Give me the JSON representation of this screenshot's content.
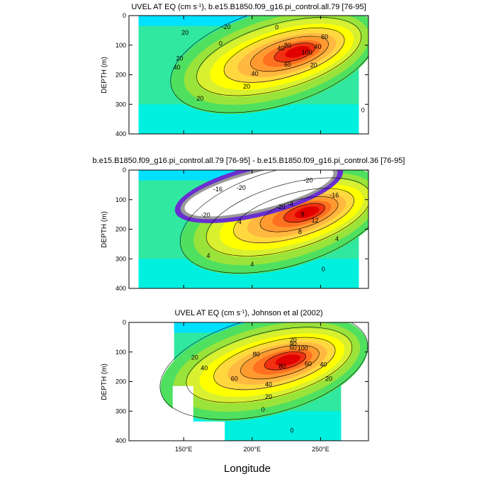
{
  "figure": {
    "xlabel": "Longitude",
    "x_ticks": [
      "150°E",
      "200°E",
      "250°E"
    ],
    "x_tick_values": [
      150,
      200,
      250
    ],
    "x_range": [
      110,
      285
    ],
    "y_range": [
      0,
      400
    ],
    "y_ticks": [
      "0",
      "100",
      "200",
      "300",
      "400"
    ],
    "y_tick_values": [
      0,
      100,
      200,
      300,
      400
    ],
    "ylabel": "DEPTH (m)"
  },
  "palette": [
    "#00e0ff",
    "#00f0e0",
    "#30e8a0",
    "#50e060",
    "#9ae33a",
    "#d8f030",
    "#ffff00",
    "#ffd840",
    "#ffb840",
    "#ff9a30",
    "#ff7020",
    "#f03010",
    "#e00000"
  ],
  "chart_data": [
    {
      "type": "contour",
      "title": "UVEL AT EQ (cm s-1), b.e15.B1850.f09_g16.pi_control.all.79 [76-95]",
      "title_main": "UVEL AT EQ (cm s",
      "title_sup": "-1",
      "title_rest": "), b.e15.B1850.f09_g16.pi_control.all.79 [76-95]",
      "xlabel": "",
      "ylabel": "DEPTH (m)",
      "x_range": [
        110,
        285
      ],
      "ylim": [
        0,
        400
      ],
      "data_extent_lon": [
        117,
        278
      ],
      "core": {
        "lon": 235,
        "depth": 120,
        "max": 120
      },
      "contour_levels": [
        -20,
        0,
        20,
        40,
        60,
        80,
        100
      ],
      "contour_labels": [
        {
          "text": "-20",
          "lon": 181,
          "depth": 38
        },
        {
          "text": "0",
          "lon": 218,
          "depth": 40
        },
        {
          "text": "0",
          "lon": 177,
          "depth": 95
        },
        {
          "text": "20",
          "lon": 151,
          "depth": 58
        },
        {
          "text": "20",
          "lon": 147,
          "depth": 145
        },
        {
          "text": "20",
          "lon": 245,
          "depth": 168
        },
        {
          "text": "20",
          "lon": 162,
          "depth": 280
        },
        {
          "text": "20",
          "lon": 196,
          "depth": 240
        },
        {
          "text": "40",
          "lon": 145,
          "depth": 175
        },
        {
          "text": "40",
          "lon": 202,
          "depth": 197
        },
        {
          "text": "40",
          "lon": 248,
          "depth": 105
        },
        {
          "text": "40",
          "lon": 221,
          "depth": 110
        },
        {
          "text": "60",
          "lon": 226,
          "depth": 165
        },
        {
          "text": "60",
          "lon": 253,
          "depth": 72
        },
        {
          "text": "80",
          "lon": 226,
          "depth": 100
        },
        {
          "text": "100",
          "lon": 240,
          "depth": 125
        },
        {
          "text": "0",
          "lon": 281,
          "depth": 320
        }
      ]
    },
    {
      "type": "contour",
      "title": "b.e15.B1850.f09_g16.pi_control.all.79 [76-95] - b.e15.B1850.f09_g16.pi_control.36 [76-95]",
      "title_main": "b.e15.B1850.f09_g16.pi_control.all.79 [76-95] - b.e15.B1850.f09_g16.pi_control.36 [76-95]",
      "title_sup": "",
      "title_rest": "",
      "xlabel": "",
      "ylabel": "DEPTH (m)",
      "x_range": [
        110,
        285
      ],
      "ylim": [
        0,
        400
      ],
      "data_extent_lon": [
        117,
        278
      ],
      "core": {
        "lon": 242,
        "depth": 140,
        "max": 16
      },
      "contour_levels": [
        -20,
        -16,
        -12,
        -8,
        -4,
        0,
        4,
        8,
        12
      ],
      "contour_labels": [
        {
          "text": "-20",
          "lon": 192,
          "depth": 60
        },
        {
          "text": "-20",
          "lon": 166,
          "depth": 152
        },
        {
          "text": "-20",
          "lon": 241,
          "depth": 35
        },
        {
          "text": "-16",
          "lon": 175,
          "depth": 65
        },
        {
          "text": "-16",
          "lon": 260,
          "depth": 85
        },
        {
          "text": "-20",
          "lon": 221,
          "depth": 125
        },
        {
          "text": "-4",
          "lon": 228,
          "depth": 115
        },
        {
          "text": "4",
          "lon": 191,
          "depth": 175
        },
        {
          "text": "4",
          "lon": 168,
          "depth": 290
        },
        {
          "text": "4",
          "lon": 200,
          "depth": 318
        },
        {
          "text": "4",
          "lon": 262,
          "depth": 232
        },
        {
          "text": "8",
          "lon": 237,
          "depth": 150
        },
        {
          "text": "8",
          "lon": 235,
          "depth": 208
        },
        {
          "text": "12",
          "lon": 246,
          "depth": 170
        },
        {
          "text": "0",
          "lon": 252,
          "depth": 335
        }
      ]
    },
    {
      "type": "contour",
      "title": "UVEL AT EQ (cm s-1), Johnson et al (2002)",
      "title_main": "UVEL AT EQ (cm s",
      "title_sup": "-1",
      "title_rest": "), Johnson et al (2002)",
      "xlabel": "Longitude",
      "ylabel": "DEPTH (m)",
      "x_range": [
        110,
        285
      ],
      "ylim": [
        0,
        400
      ],
      "data_extent_lon": [
        143,
        265
      ],
      "core": {
        "lon": 228,
        "depth": 125,
        "max": 110
      },
      "contour_levels": [
        -20,
        0,
        20,
        40,
        60,
        80,
        100
      ],
      "contour_labels": [
        {
          "text": "20",
          "lon": 230,
          "depth": 60
        },
        {
          "text": "20",
          "lon": 158,
          "depth": 118
        },
        {
          "text": "20",
          "lon": 212,
          "depth": 252
        },
        {
          "text": "20",
          "lon": 256,
          "depth": 190
        },
        {
          "text": "40",
          "lon": 230,
          "depth": 72
        },
        {
          "text": "40",
          "lon": 165,
          "depth": 155
        },
        {
          "text": "40",
          "lon": 212,
          "depth": 210
        },
        {
          "text": "40",
          "lon": 252,
          "depth": 142
        },
        {
          "text": "60",
          "lon": 230,
          "depth": 85
        },
        {
          "text": "60",
          "lon": 187,
          "depth": 190
        },
        {
          "text": "60",
          "lon": 241,
          "depth": 140
        },
        {
          "text": "80",
          "lon": 203,
          "depth": 108
        },
        {
          "text": "80",
          "lon": 222,
          "depth": 148
        },
        {
          "text": "100",
          "lon": 237,
          "depth": 88
        },
        {
          "text": "0",
          "lon": 208,
          "depth": 295
        },
        {
          "text": "0",
          "lon": 229,
          "depth": 365
        }
      ]
    }
  ]
}
